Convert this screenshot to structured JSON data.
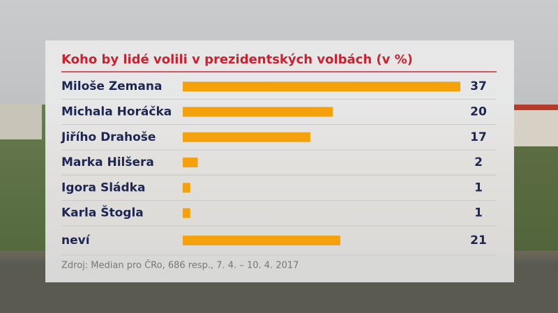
{
  "chart_data": {
    "type": "bar",
    "orientation": "horizontal",
    "title": "Koho by lidé volili v prezidentských volbách (v %)",
    "categories": [
      "Miloše Zemana",
      "Michala Horáčka",
      "Jiřího Drahoše",
      "Marka Hilšera",
      "Igora Sládka",
      "Karla Štogla",
      "neví"
    ],
    "values": [
      37,
      20,
      17,
      2,
      1,
      1,
      21
    ],
    "color": "#f5a10c",
    "source": "Zdroj: Median pro ČRo, 686 resp., 7. 4. – 10. 4. 2017"
  }
}
